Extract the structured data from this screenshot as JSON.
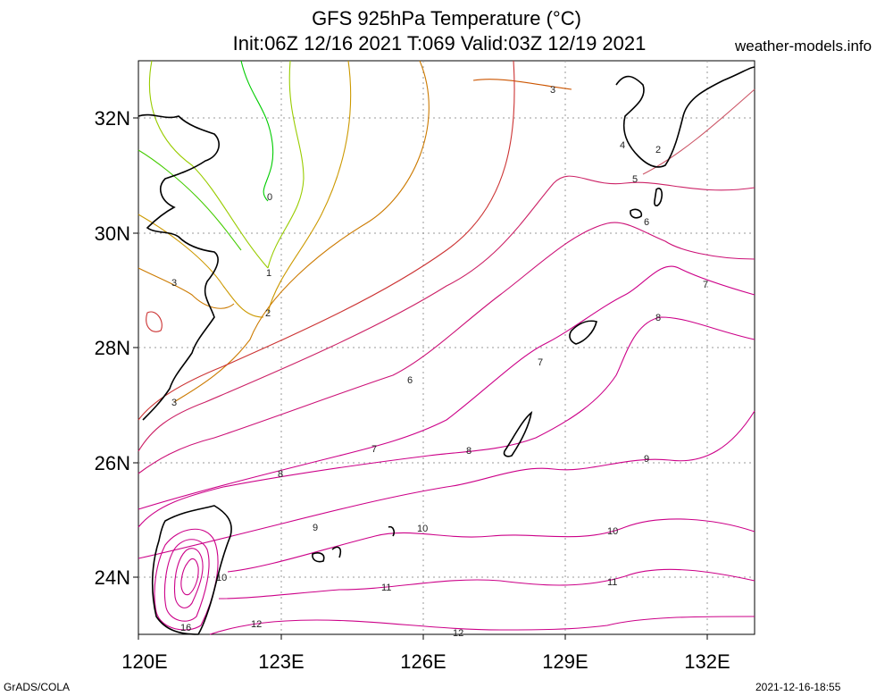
{
  "header": {
    "title_line1": "GFS 925hPa Temperature (°C)",
    "title_line2": "Init:06Z 12/16 2021 T:069 Valid:03Z 12/19 2021",
    "brand": "weather-models.info"
  },
  "footer": {
    "left": "GrADS/COLA",
    "right": "2021-12-16-18:55"
  },
  "map": {
    "lon_ticks": [
      "120E",
      "123E",
      "126E",
      "129E",
      "132E"
    ],
    "lat_ticks": [
      "32N",
      "30N",
      "28N",
      "26N",
      "24N"
    ],
    "contour_labels": [
      "0",
      "1",
      "2",
      "3",
      "3",
      "3",
      "4",
      "2",
      "5",
      "6",
      "6",
      "7",
      "7",
      "7",
      "8",
      "8",
      "8",
      "9",
      "9",
      "10",
      "10",
      "10",
      "11",
      "11",
      "12",
      "12",
      "16"
    ],
    "colors": {
      "cold": "#00cc00",
      "cool": "#99cc00",
      "mild": "#cc7a00",
      "warm": "#cc3333",
      "hot": "#cc0088"
    }
  }
}
